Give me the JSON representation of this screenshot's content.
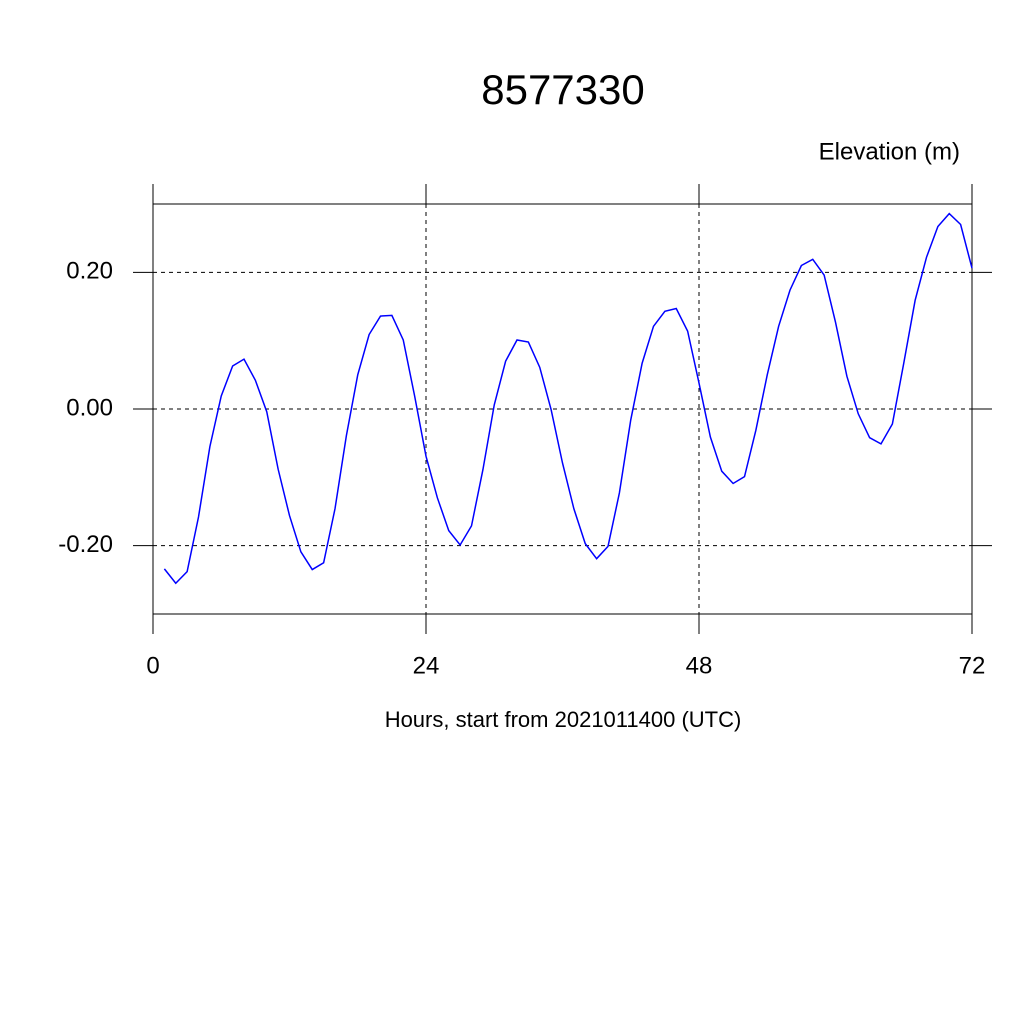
{
  "chart_data": {
    "type": "line",
    "title": "8577330",
    "subtitle": "Elevation (m)",
    "x_label": "Hours, start from 2021011400 (UTC)",
    "xlim": [
      0,
      72
    ],
    "xticks": [
      0,
      24,
      48,
      72
    ],
    "ylim": [
      -0.3,
      0.3
    ],
    "yticks": [
      {
        "value": -0.2,
        "label": "-0.20"
      },
      {
        "value": 0,
        "label": "0.00"
      },
      {
        "value": 0.2,
        "label": "0.20"
      }
    ],
    "grid": true,
    "x": [
      1,
      2,
      3,
      4,
      5,
      6,
      7,
      8,
      9,
      10,
      11,
      12,
      13,
      14,
      15,
      16,
      17,
      18,
      19,
      20,
      21,
      22,
      23,
      24,
      25,
      26,
      27,
      28,
      29,
      30,
      31,
      32,
      33,
      34,
      35,
      36,
      37,
      38,
      39,
      40,
      41,
      42,
      43,
      44,
      45,
      46,
      47,
      48,
      49,
      50,
      51,
      52,
      53,
      54,
      55,
      56,
      57,
      58,
      59,
      60,
      61,
      62,
      63,
      64,
      65,
      66,
      67,
      68,
      69,
      70,
      71,
      72
    ],
    "series": [
      {
        "color": "#0000ff",
        "values": [
          -0.234,
          -0.255,
          -0.238,
          -0.158,
          -0.055,
          0.019,
          0.063,
          0.073,
          0.042,
          -0.004,
          -0.088,
          -0.156,
          -0.209,
          -0.235,
          -0.225,
          -0.146,
          -0.039,
          0.05,
          0.109,
          0.136,
          0.137,
          0.101,
          0.019,
          -0.069,
          -0.13,
          -0.178,
          -0.199,
          -0.171,
          -0.089,
          0.006,
          0.07,
          0.101,
          0.098,
          0.061,
          -0.001,
          -0.079,
          -0.146,
          -0.197,
          -0.219,
          -0.201,
          -0.123,
          -0.016,
          0.067,
          0.121,
          0.143,
          0.147,
          0.114,
          0.038,
          -0.041,
          -0.091,
          -0.109,
          -0.099,
          -0.031,
          0.05,
          0.121,
          0.174,
          0.21,
          0.219,
          0.196,
          0.127,
          0.048,
          -0.007,
          -0.042,
          -0.051,
          -0.022,
          0.067,
          0.159,
          0.222,
          0.267,
          0.286,
          0.27,
          0.206
        ]
      }
    ]
  }
}
